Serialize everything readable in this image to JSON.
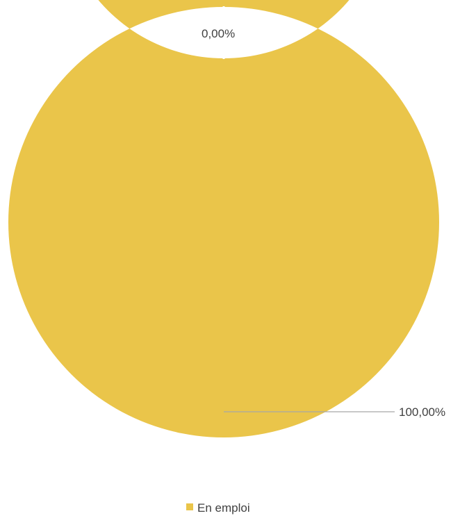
{
  "chart_data": {
    "type": "pie",
    "variant": "donut",
    "categories": [
      "",
      "En emploi"
    ],
    "values": [
      0.0,
      100.0
    ],
    "data_labels": [
      "0,00%",
      "100,00%"
    ],
    "colors": [
      "#EAC54A",
      "#EAC54A"
    ],
    "legend": {
      "placement": "bottom",
      "entries": [
        {
          "label": "En emploi",
          "color": "#EAC54A"
        }
      ]
    },
    "leader_line_color": "#A6A6A6",
    "separator_color": "#FFFFFF"
  }
}
